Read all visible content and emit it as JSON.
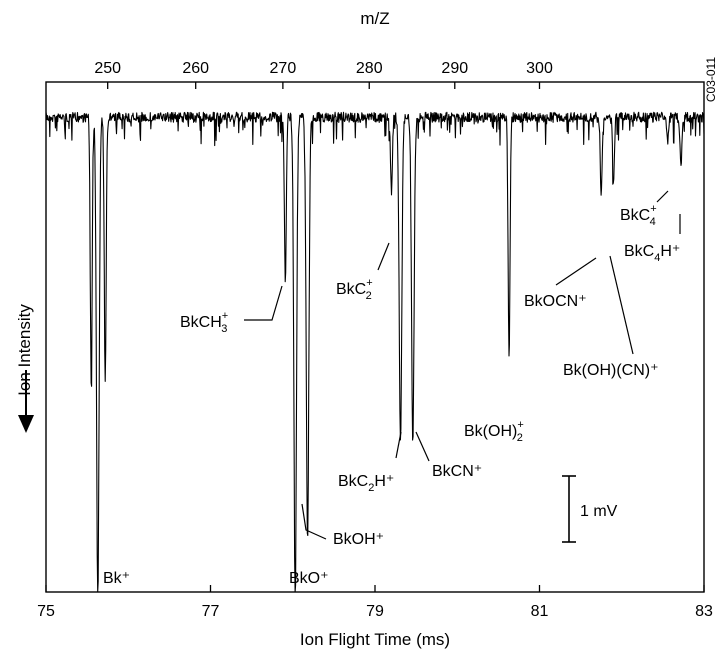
{
  "chart_data": {
    "type": "line",
    "title": "",
    "xlabel": "Ion Flight Time (ms)",
    "xlabel_top": "m/Z",
    "ylabel": "Ion Intensity",
    "xlim": [
      75,
      83
    ],
    "top_ticks": [
      {
        "label": "250",
        "t": 75.75
      },
      {
        "label": "260",
        "t": 76.82
      },
      {
        "label": "270",
        "t": 77.88
      },
      {
        "label": "280",
        "t": 78.93
      },
      {
        "label": "290",
        "t": 79.97
      },
      {
        "label": "300",
        "t": 81.0
      }
    ],
    "bottom_ticks": [
      "75",
      "77",
      "79",
      "81",
      "83"
    ],
    "y_inverted": true,
    "ylim": [
      -0.5,
      8.6
    ],
    "baseline_mV": 0,
    "scale_bar": {
      "label": "1 mV",
      "value": 1
    },
    "side_label": "C03-011",
    "peaks": [
      {
        "t": 75.55,
        "depth": 4.7
      },
      {
        "t": 75.63,
        "depth": 8.6,
        "label": "Bk⁺"
      },
      {
        "t": 75.72,
        "depth": 4.7
      },
      {
        "t": 77.91,
        "depth": 2.9,
        "label_main": "BkCH",
        "label_sub": "3",
        "label_sup": "+"
      },
      {
        "t": 78.03,
        "depth": 8.6,
        "label": "BkO⁺"
      },
      {
        "t": 78.18,
        "depth": 7.6,
        "label": "BkOH⁺"
      },
      {
        "t": 79.2,
        "depth": 1.3,
        "label_main": "BkC",
        "label_sub": "2",
        "label_sup": "+"
      },
      {
        "t": 79.31,
        "depth": 5.8,
        "label_main": "BkC",
        "label_sub": "2",
        "label_tail": "H⁺"
      },
      {
        "t": 79.46,
        "depth": 5.8,
        "label": "BkCN⁺"
      },
      {
        "t": 80.63,
        "depth": 4.3,
        "label_main": "Bk(OH)",
        "label_sub": "2",
        "label_sup": "+"
      },
      {
        "t": 81.75,
        "depth": 1.4,
        "label": "BkOCN⁺"
      },
      {
        "t": 81.9,
        "depth": 1.2,
        "label": "Bk(OH)(CN)⁺"
      },
      {
        "t": 82.56,
        "depth": 0.4,
        "label_main": "BkC",
        "label_sub": "4",
        "label_sup": "+"
      },
      {
        "t": 82.72,
        "depth": 0.9,
        "label_main": "BkC",
        "label_sub": "4",
        "label_tail": "H⁺"
      }
    ]
  }
}
